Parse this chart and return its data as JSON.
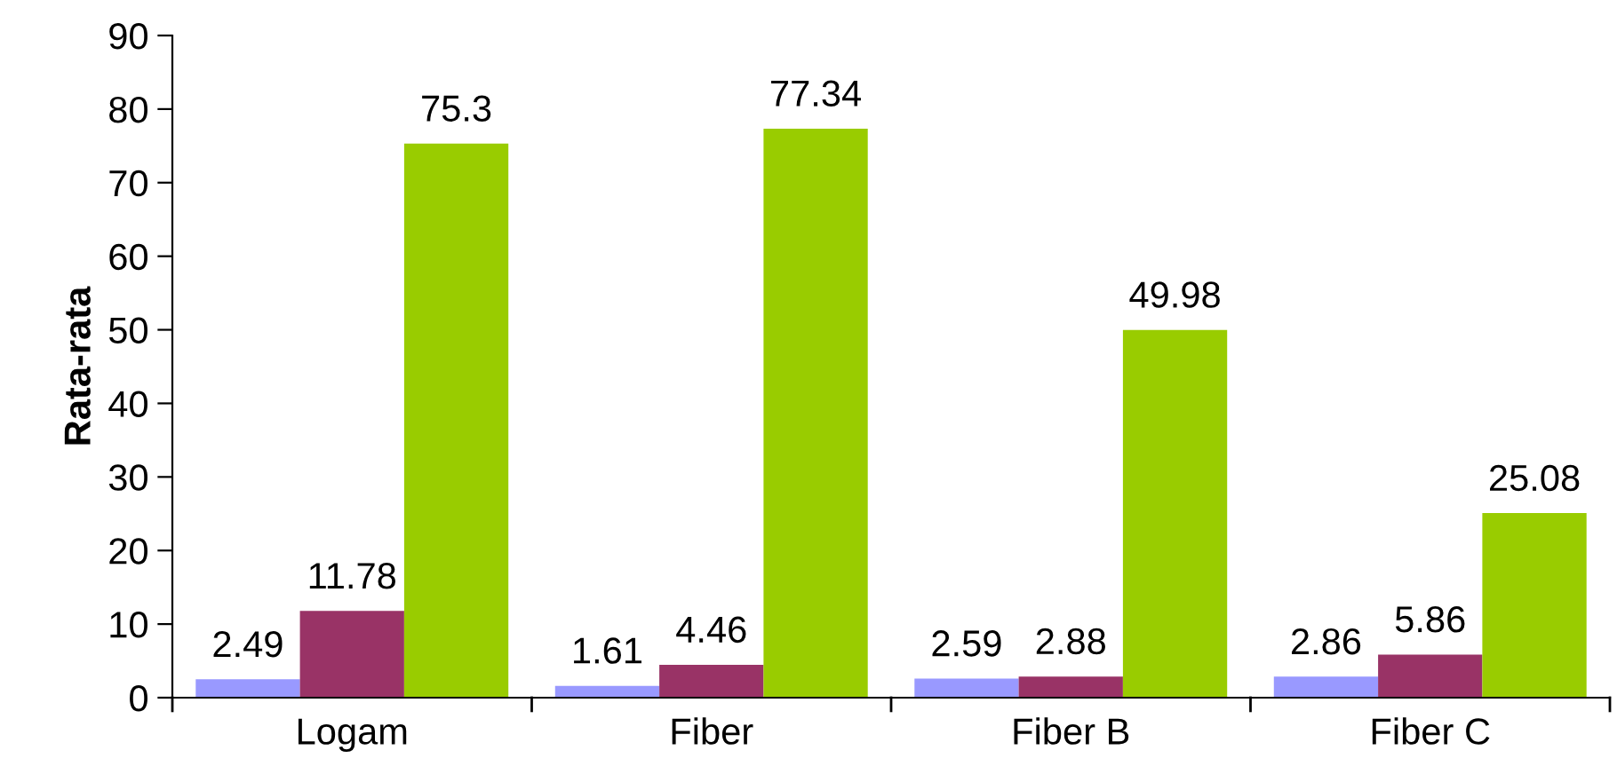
{
  "chart_data": {
    "type": "bar",
    "ylabel": "Rata-rata",
    "categories": [
      "Logam",
      "Fiber",
      "Fiber B",
      "Fiber C"
    ],
    "series": [
      {
        "color": "#9999ff",
        "values": [
          2.49,
          1.61,
          2.59,
          2.86
        ]
      },
      {
        "color": "#993366",
        "values": [
          11.78,
          4.46,
          2.88,
          5.86
        ]
      },
      {
        "color": "#99cc00",
        "values": [
          75.3,
          77.34,
          49.98,
          25.08
        ]
      }
    ],
    "ylim": [
      0,
      90
    ],
    "yticks": [
      0,
      10,
      20,
      30,
      40,
      50,
      60,
      70,
      80,
      90
    ],
    "data_labels": true,
    "grid": false,
    "legend": false
  }
}
